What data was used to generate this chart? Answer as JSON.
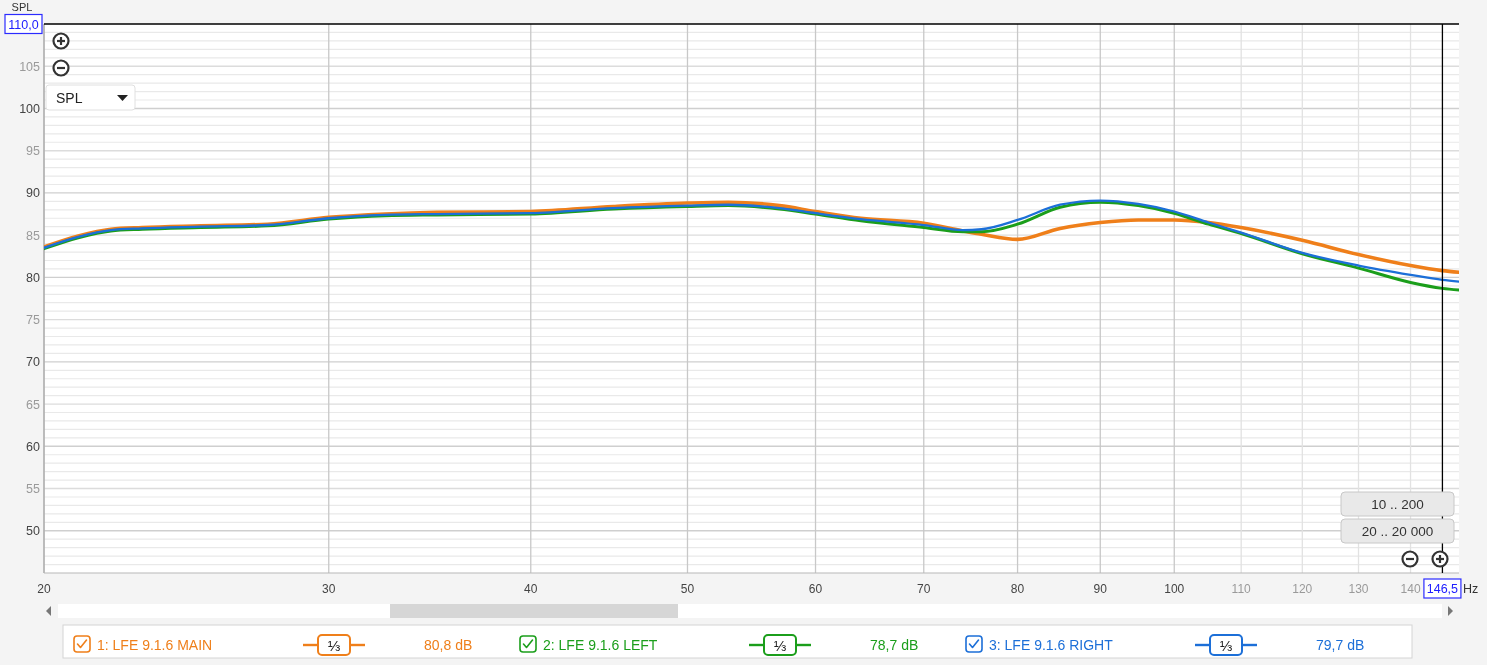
{
  "chart_data": {
    "type": "line",
    "xlabel": "Hz",
    "ylabel": "SPL",
    "x": [
      20,
      21,
      22,
      23,
      25,
      27.5,
      30,
      32.5,
      35,
      40,
      45,
      50,
      53,
      57,
      60,
      64,
      70,
      74,
      76,
      80,
      85,
      90,
      95,
      100,
      105,
      110,
      120,
      130,
      140,
      146.5,
      150
    ],
    "series": [
      {
        "name": "1: LFE 9.1.6 MAIN",
        "color": "#ef7f1a",
        "values": [
          83.6,
          84.9,
          85.7,
          85.9,
          86.1,
          86.3,
          87.1,
          87.5,
          87.7,
          87.8,
          88.4,
          88.8,
          88.9,
          88.5,
          87.8,
          87.0,
          86.4,
          85.5,
          85.1,
          84.5,
          85.8,
          86.5,
          86.8,
          86.8,
          86.5,
          85.9,
          84.4,
          82.7,
          81.4,
          80.8,
          80.6
        ]
      },
      {
        "name": "2: LFE 9.1.6 LEFT",
        "color": "#1b9e1b",
        "values": [
          83.4,
          84.7,
          85.5,
          85.7,
          85.9,
          86.1,
          86.9,
          87.3,
          87.4,
          87.5,
          88.1,
          88.4,
          88.5,
          88.1,
          87.5,
          86.7,
          85.9,
          85.4,
          85.4,
          86.3,
          88.3,
          88.9,
          88.5,
          87.6,
          86.3,
          85.2,
          82.8,
          81.1,
          79.4,
          78.7,
          78.5
        ]
      },
      {
        "name": "3: LFE 9.1.6 RIGHT",
        "color": "#1c6fd8",
        "values": [
          83.5,
          84.8,
          85.6,
          85.8,
          86.0,
          86.2,
          87.0,
          87.4,
          87.5,
          87.6,
          88.2,
          88.5,
          88.6,
          88.2,
          87.6,
          86.9,
          86.2,
          85.6,
          85.7,
          86.8,
          88.6,
          89.1,
          88.7,
          87.8,
          86.5,
          85.3,
          82.9,
          81.4,
          80.3,
          79.7,
          79.5
        ]
      }
    ],
    "xlim": [
      20,
      150
    ],
    "ylim": [
      45,
      110
    ],
    "xticks": [
      20,
      30,
      40,
      50,
      60,
      70,
      80,
      90,
      100,
      110,
      120,
      130,
      140
    ],
    "yticks": [
      50,
      55,
      60,
      65,
      70,
      75,
      80,
      85,
      90,
      95,
      100,
      105
    ],
    "log": "x",
    "grid": true,
    "legend": "bottom",
    "ref_lines": [
      {
        "axis": "y",
        "value": 110,
        "label": "110,0",
        "color": "#000000"
      },
      {
        "axis": "x",
        "value": 146.5,
        "label": "146,5",
        "color": "#000000"
      }
    ],
    "annotations": [
      "SPL",
      "10 .. 200",
      "20 .. 20 000",
      "⅓",
      "80,8 dB",
      "⅓",
      "78,7 dB",
      "⅓",
      "79,7 dB"
    ]
  }
}
